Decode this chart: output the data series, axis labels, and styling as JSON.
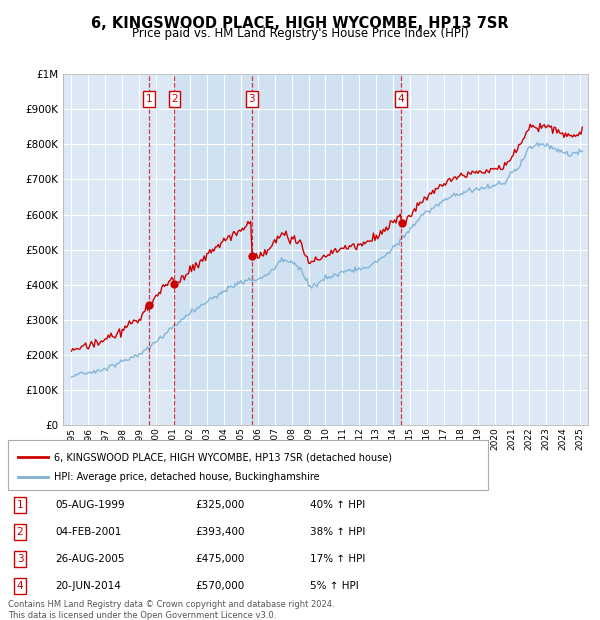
{
  "title": "6, KINGSWOOD PLACE, HIGH WYCOMBE, HP13 7SR",
  "subtitle": "Price paid vs. HM Land Registry's House Price Index (HPI)",
  "background_color": "#ffffff",
  "plot_bg_color": "#dce8f5",
  "grid_color": "#ffffff",
  "hpi_line_color": "#7bafd4",
  "price_line_color": "#cc0000",
  "shade_color": "#c8dff0",
  "transactions": [
    {
      "num": 1,
      "date_label": "05-AUG-1999",
      "price": 325000,
      "pct": "40%",
      "x_year": 1999.58
    },
    {
      "num": 2,
      "date_label": "04-FEB-2001",
      "price": 393400,
      "pct": "38%",
      "x_year": 2001.08
    },
    {
      "num": 3,
      "date_label": "26-AUG-2005",
      "price": 475000,
      "pct": "17%",
      "x_year": 2005.64
    },
    {
      "num": 4,
      "date_label": "20-JUN-2014",
      "price": 570000,
      "pct": "5%",
      "x_year": 2014.46
    }
  ],
  "legend_label_price": "6, KINGSWOOD PLACE, HIGH WYCOMBE, HP13 7SR (detached house)",
  "legend_label_hpi": "HPI: Average price, detached house, Buckinghamshire",
  "footnote": "Contains HM Land Registry data © Crown copyright and database right 2024.\nThis data is licensed under the Open Government Licence v3.0.",
  "ylim": [
    0,
    1000000
  ],
  "xlim": [
    1994.5,
    2025.5
  ],
  "yticks": [
    0,
    100000,
    200000,
    300000,
    400000,
    500000,
    600000,
    700000,
    800000,
    900000,
    1000000
  ],
  "ytick_labels": [
    "£0",
    "£100K",
    "£200K",
    "£300K",
    "£400K",
    "£500K",
    "£600K",
    "£700K",
    "£800K",
    "£900K",
    "£1M"
  ]
}
